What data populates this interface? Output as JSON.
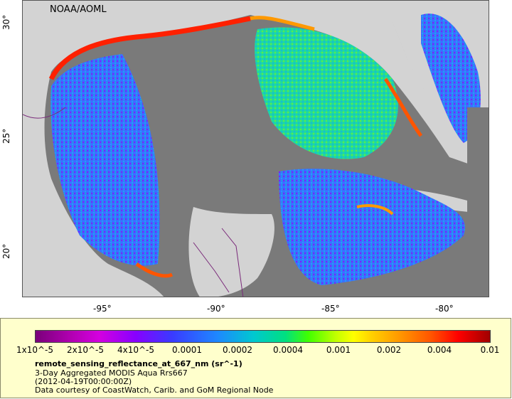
{
  "map": {
    "credit": "NOAA/AOML",
    "y_ticks": [
      "30°",
      "25°",
      "20°"
    ],
    "x_ticks": [
      "-95°",
      "-90°",
      "-85°",
      "-80°"
    ],
    "colors": {
      "land": "#d3d3d3",
      "nodata": "#7a7a7a",
      "coast": "#7fa0c0",
      "border": "#7a2a7a"
    }
  },
  "legend": {
    "colorbar_ticks": [
      "1x10^-5",
      "2x10^-5",
      "4x10^-5",
      "0.0001",
      "0.0002",
      "0.0004",
      "0.001",
      "0.002",
      "0.004",
      "0.01"
    ],
    "variable": "remote_sensing_reflectance_at_667_nm (sr^-1)",
    "line1": "3-Day Aggregated MODIS Aqua Rrs667",
    "line2": "(2012-04-19T00:00:00Z)",
    "line3": "Data courtesy of CoastWatch, Carib. and GoM Regional Node",
    "background": "#ffffcc"
  }
}
